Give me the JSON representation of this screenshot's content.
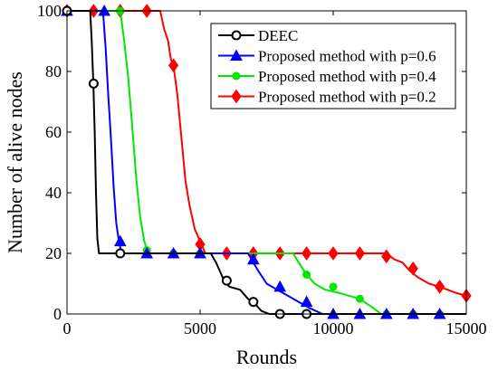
{
  "chart_data": {
    "type": "line",
    "title": "",
    "xlabel": "Rounds",
    "ylabel": "Number of alive nodes",
    "xlim": [
      0,
      15000
    ],
    "ylim": [
      0,
      100
    ],
    "xticks": [
      0,
      5000,
      10000,
      15000
    ],
    "yticks": [
      0,
      20,
      40,
      60,
      80,
      100
    ],
    "grid": false,
    "legend_position": "top-right",
    "series": [
      {
        "name": "DEEC",
        "color": "#000000",
        "marker": "circle",
        "points": [
          [
            0,
            100
          ],
          [
            870,
            100
          ],
          [
            930,
            90
          ],
          [
            990,
            76
          ],
          [
            1040,
            60
          ],
          [
            1090,
            40
          ],
          [
            1140,
            25
          ],
          [
            1200,
            20
          ],
          [
            2000,
            20
          ],
          [
            5400,
            20
          ],
          [
            5600,
            17
          ],
          [
            5800,
            13
          ],
          [
            5900,
            11
          ],
          [
            6100,
            9
          ],
          [
            6500,
            8
          ],
          [
            6800,
            5
          ],
          [
            7000,
            4
          ],
          [
            7300,
            1
          ],
          [
            7600,
            0
          ],
          [
            15000,
            0
          ]
        ],
        "markers": [
          [
            0,
            100
          ],
          [
            1000,
            76
          ],
          [
            2000,
            20
          ],
          [
            6000,
            11
          ],
          [
            7000,
            4
          ],
          [
            8000,
            0
          ],
          [
            9000,
            0
          ]
        ]
      },
      {
        "name": "Proposed method with p=0.6",
        "color": "#0000ff",
        "marker": "triangle",
        "points": [
          [
            0,
            100
          ],
          [
            1350,
            100
          ],
          [
            1450,
            88
          ],
          [
            1550,
            72
          ],
          [
            1650,
            58
          ],
          [
            1750,
            42
          ],
          [
            1850,
            30
          ],
          [
            1950,
            24
          ],
          [
            2050,
            20
          ],
          [
            6800,
            20
          ],
          [
            7000,
            17
          ],
          [
            7200,
            14
          ],
          [
            7500,
            10
          ],
          [
            7900,
            8
          ],
          [
            8300,
            6
          ],
          [
            8700,
            4
          ],
          [
            9100,
            2
          ],
          [
            9600,
            0
          ],
          [
            15000,
            0
          ]
        ],
        "markers": [
          [
            0,
            100
          ],
          [
            1400,
            100
          ],
          [
            2000,
            24
          ],
          [
            3000,
            20
          ],
          [
            4000,
            20
          ],
          [
            5000,
            20
          ],
          [
            7000,
            18
          ],
          [
            8000,
            9
          ],
          [
            9000,
            4
          ],
          [
            10000,
            0
          ],
          [
            11000,
            0
          ],
          [
            12000,
            0
          ],
          [
            13000,
            0
          ],
          [
            14000,
            0
          ]
        ]
      },
      {
        "name": "Proposed method with p=0.4",
        "color": "#00e600",
        "marker": "circle-filled",
        "points": [
          [
            0,
            100
          ],
          [
            2000,
            100
          ],
          [
            2150,
            90
          ],
          [
            2300,
            78
          ],
          [
            2450,
            62
          ],
          [
            2600,
            45
          ],
          [
            2750,
            32
          ],
          [
            2900,
            24
          ],
          [
            3050,
            20
          ],
          [
            8500,
            20
          ],
          [
            8700,
            17
          ],
          [
            9000,
            13
          ],
          [
            9300,
            10
          ],
          [
            9700,
            8
          ],
          [
            10200,
            7
          ],
          [
            10600,
            6
          ],
          [
            11000,
            5
          ],
          [
            11500,
            2
          ],
          [
            11800,
            0
          ],
          [
            15000,
            0
          ]
        ],
        "markers": [
          [
            0,
            100
          ],
          [
            2000,
            100
          ],
          [
            3000,
            21
          ],
          [
            4000,
            20
          ],
          [
            5000,
            20
          ],
          [
            9000,
            13
          ],
          [
            10000,
            9
          ],
          [
            11000,
            5
          ],
          [
            12000,
            0
          ],
          [
            13000,
            0
          ],
          [
            14000,
            0
          ]
        ]
      },
      {
        "name": "Proposed method with p=0.2",
        "color": "#ff0000",
        "marker": "diamond",
        "points": [
          [
            0,
            100
          ],
          [
            3500,
            100
          ],
          [
            3650,
            94
          ],
          [
            3800,
            90
          ],
          [
            3900,
            84
          ],
          [
            4000,
            82
          ],
          [
            4150,
            72
          ],
          [
            4300,
            58
          ],
          [
            4450,
            44
          ],
          [
            4600,
            36
          ],
          [
            4800,
            28
          ],
          [
            5000,
            24
          ],
          [
            5200,
            20
          ],
          [
            12000,
            20
          ],
          [
            12300,
            18
          ],
          [
            12600,
            17
          ],
          [
            12900,
            14
          ],
          [
            13200,
            12
          ],
          [
            13600,
            10
          ],
          [
            14000,
            9
          ],
          [
            14300,
            8
          ],
          [
            14600,
            7
          ],
          [
            15000,
            6
          ]
        ],
        "markers": [
          [
            0,
            100
          ],
          [
            1000,
            100
          ],
          [
            2000,
            100
          ],
          [
            3000,
            100
          ],
          [
            4000,
            82
          ],
          [
            5000,
            23
          ],
          [
            6000,
            20
          ],
          [
            7000,
            20
          ],
          [
            8000,
            20
          ],
          [
            9000,
            20
          ],
          [
            10000,
            20
          ],
          [
            11000,
            20
          ],
          [
            12000,
            19
          ],
          [
            13000,
            15
          ],
          [
            14000,
            9
          ],
          [
            15000,
            6
          ]
        ]
      }
    ]
  }
}
